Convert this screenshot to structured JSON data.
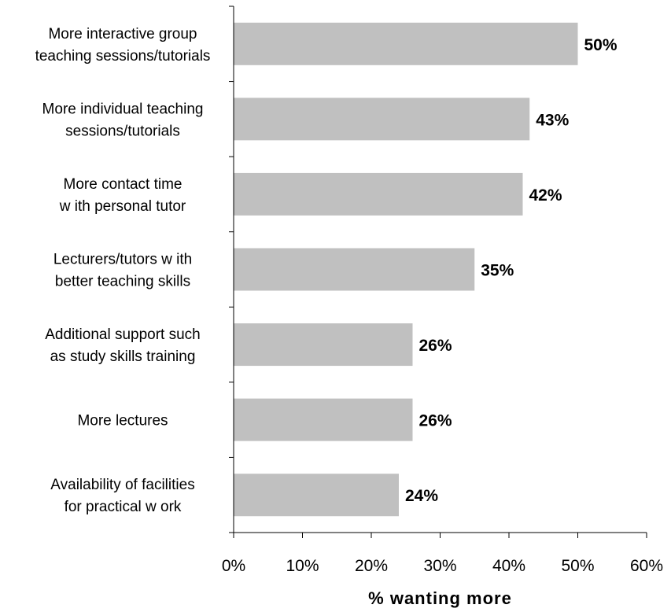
{
  "chart_data": {
    "type": "bar",
    "orientation": "horizontal",
    "categories": [
      "More interactive group teaching sessions/tutorials",
      "More individual teaching sessions/tutorials",
      "More contact time with personal tutor",
      "Lecturers/tutors with better teaching skills",
      "Additional support such as study skills training",
      "More lectures",
      "Availability of facilities for practical work"
    ],
    "category_label_lines": [
      [
        "More interactive group",
        "teaching sessions/tutorials"
      ],
      [
        "More individual teaching",
        "sessions/tutorials"
      ],
      [
        "More contact time",
        "w ith personal tutor"
      ],
      [
        "Lecturers/tutors w ith",
        "better teaching skills"
      ],
      [
        "Additional support such",
        "as study skills training"
      ],
      [
        "More lectures"
      ],
      [
        "Availability of facilities",
        "for practical w ork"
      ]
    ],
    "values": [
      50,
      43,
      42,
      35,
      26,
      26,
      24
    ],
    "value_labels": [
      "50%",
      "43%",
      "42%",
      "35%",
      "26%",
      "26%",
      "24%"
    ],
    "xlim": [
      0,
      60
    ],
    "x_ticks": [
      0,
      10,
      20,
      30,
      40,
      50,
      60
    ],
    "x_tick_labels": [
      "0%",
      "10%",
      "20%",
      "30%",
      "40%",
      "50%",
      "60%"
    ],
    "xlabel": "% wanting more",
    "ylabel": "",
    "title": "",
    "grid": false,
    "legend": "none",
    "bar_color": "#C0C0C0",
    "axis_color": "#000000"
  }
}
